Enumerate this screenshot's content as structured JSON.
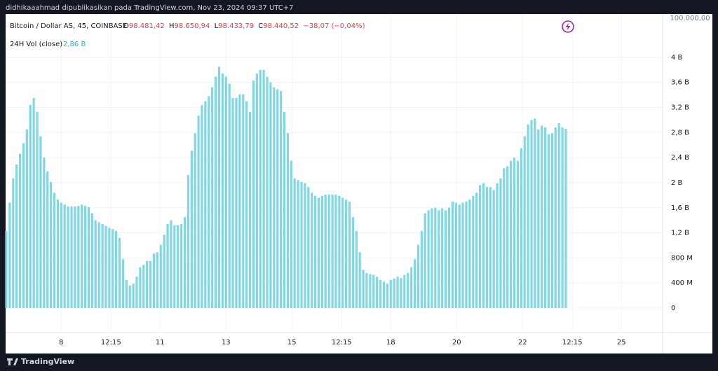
{
  "header": {
    "publisher": "didhikaaahmad dipublikasikan pada TradingView.com, Nov 23, 2024 09:37 UTC+7"
  },
  "legend": {
    "symbol": "Bitcoin / Dollar AS, 45, COINBASE",
    "o_key": "O",
    "o": "98.481,42",
    "h_key": "H",
    "h": "98.650,94",
    "l_key": "L",
    "l": "98.433,79",
    "c_key": "C",
    "c": "98.440,52",
    "change": "−38,07 (−0,04%)",
    "indicator": "24H Vol (close)",
    "indicator_value": "2,86 B"
  },
  "price_scale_top_label": "100.000,00",
  "footer": {
    "brand": "TradingView"
  },
  "chart_data": {
    "type": "bar",
    "color": "#80d8e4",
    "grid": true,
    "x": [
      -40,
      -37.5,
      -35,
      -32.5,
      -30,
      -27.5,
      -25,
      -22.5,
      -20,
      -17.5,
      -15,
      -12.5,
      -10,
      -7.5,
      -5,
      -2.5,
      0,
      2.5,
      5,
      7.5,
      10,
      12.5,
      15,
      17.5,
      20,
      22.5,
      25,
      27.5,
      30,
      32.5,
      35,
      37.5,
      40,
      42.5,
      45,
      47.5,
      50,
      52.5,
      55,
      57.5,
      60,
      62.5,
      65,
      67.5,
      70,
      72.5,
      75,
      77.5,
      80,
      82.5,
      85,
      87.5,
      90,
      92.5,
      95,
      97.5,
      100,
      102.5,
      105,
      107.5,
      110,
      112.5,
      115,
      117.5,
      120,
      122.5,
      125,
      127.5,
      130,
      132.5,
      135,
      137.5,
      140,
      142.5,
      145,
      147.5,
      150,
      152.5,
      155,
      157.5,
      160,
      162.5,
      165,
      167.5,
      170,
      172.5,
      175,
      177.5,
      180,
      182.5,
      185,
      187.5,
      190,
      192.5,
      195,
      197.5,
      200,
      202.5,
      205,
      207.5,
      210,
      212.5,
      215,
      217.5,
      220,
      222.5,
      225,
      227.5,
      230,
      232.5,
      235,
      237.5,
      240,
      242.5,
      245,
      247.5,
      250,
      252.5,
      255,
      257.5,
      260,
      262.5,
      265,
      267.5,
      270,
      272.5,
      275,
      277.5,
      280,
      282.5,
      285,
      287.5,
      290,
      292.5,
      295,
      297.5,
      300,
      302.5,
      305,
      307.5,
      310,
      312.5,
      315,
      317.5,
      320,
      322.5,
      325,
      327.5,
      330,
      332.5,
      335,
      337.5,
      340,
      342.5,
      345,
      347.5,
      350,
      352.5,
      355,
      357.5,
      360,
      362.5,
      365,
      367.5
    ],
    "values": [
      1.23,
      1.68,
      2.07,
      2.29,
      2.46,
      2.63,
      2.85,
      3.24,
      3.35,
      3.13,
      2.74,
      2.4,
      2.18,
      2.01,
      1.84,
      1.73,
      1.68,
      1.65,
      1.62,
      1.62,
      1.62,
      1.63,
      1.65,
      1.63,
      1.61,
      1.51,
      1.4,
      1.37,
      1.34,
      1.31,
      1.28,
      1.26,
      1.23,
      1.12,
      0.78,
      0.45,
      0.36,
      0.39,
      0.5,
      0.65,
      0.69,
      0.75,
      0.75,
      0.87,
      0.89,
      1.01,
      1.17,
      1.34,
      1.4,
      1.32,
      1.32,
      1.34,
      1.45,
      2.12,
      2.51,
      2.79,
      3.07,
      3.24,
      3.3,
      3.38,
      3.52,
      3.69,
      3.85,
      3.74,
      3.69,
      3.58,
      3.35,
      3.35,
      3.41,
      3.41,
      3.3,
      3.13,
      3.63,
      3.74,
      3.8,
      3.8,
      3.69,
      3.6,
      3.52,
      3.49,
      3.46,
      3.13,
      2.79,
      2.35,
      2.07,
      2.04,
      2.01,
      1.99,
      1.93,
      1.84,
      1.79,
      1.76,
      1.79,
      1.81,
      1.81,
      1.81,
      1.81,
      1.79,
      1.76,
      1.73,
      1.7,
      1.45,
      1.23,
      0.89,
      0.61,
      0.56,
      0.54,
      0.53,
      0.5,
      0.45,
      0.42,
      0.39,
      0.45,
      0.47,
      0.5,
      0.48,
      0.53,
      0.56,
      0.65,
      0.78,
      1.01,
      1.23,
      1.51,
      1.56,
      1.59,
      1.6,
      1.56,
      1.59,
      1.56,
      1.6,
      1.7,
      1.68,
      1.65,
      1.68,
      1.7,
      1.73,
      1.79,
      1.84,
      1.96,
      1.99,
      1.93,
      1.93,
      1.88,
      1.99,
      2.07,
      2.23,
      2.26,
      2.35,
      2.4,
      2.35,
      2.55,
      2.74,
      2.93,
      3.0,
      3.02,
      2.85,
      2.91,
      2.88,
      2.77,
      2.79,
      2.88,
      2.95,
      2.88,
      2.86
    ],
    "xlim": [
      -40.5,
      438
    ],
    "xticks": [
      {
        "value": 0,
        "label": "8"
      },
      {
        "value": 36.25,
        "label": "12:15"
      },
      {
        "value": 72,
        "label": "11"
      },
      {
        "value": 120,
        "label": "13"
      },
      {
        "value": 168,
        "label": "15"
      },
      {
        "value": 204.25,
        "label": "12:15"
      },
      {
        "value": 240,
        "label": "18"
      },
      {
        "value": 288,
        "label": "20"
      },
      {
        "value": 336,
        "label": "22"
      },
      {
        "value": 372.25,
        "label": "12:15"
      },
      {
        "value": 408,
        "label": "25"
      }
    ],
    "ylim": [
      -0.39,
      4.69
    ],
    "yticks": [
      0,
      {
        "value": 0.4,
        "label": "400 M"
      },
      {
        "value": 0.8,
        "label": "800 M"
      },
      {
        "value": 1.2,
        "label": "1,2 B"
      },
      {
        "value": 1.6,
        "label": "1,6 B"
      },
      {
        "value": 2,
        "label": "2 B"
      },
      {
        "value": 2.4,
        "label": "2,4 B"
      },
      {
        "value": 2.8,
        "label": "2,8 B"
      },
      {
        "value": 3.2,
        "label": "3,2 B"
      },
      {
        "value": 3.6,
        "label": "3,6 B"
      },
      {
        "value": 4,
        "label": "4 B"
      }
    ]
  }
}
